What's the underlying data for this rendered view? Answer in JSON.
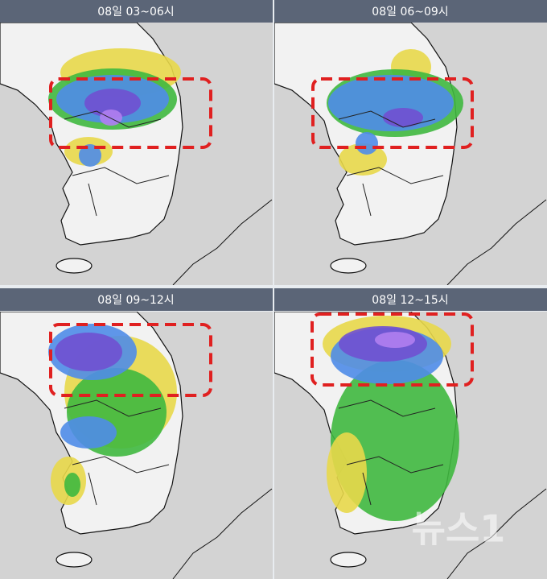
{
  "panels": [
    {
      "title": "08일 03~06시"
    },
    {
      "title": "08일 06~09시"
    },
    {
      "title": "08일 09~12시"
    },
    {
      "title": "08일 12~15시"
    }
  ],
  "watermark": "뉴스1"
}
